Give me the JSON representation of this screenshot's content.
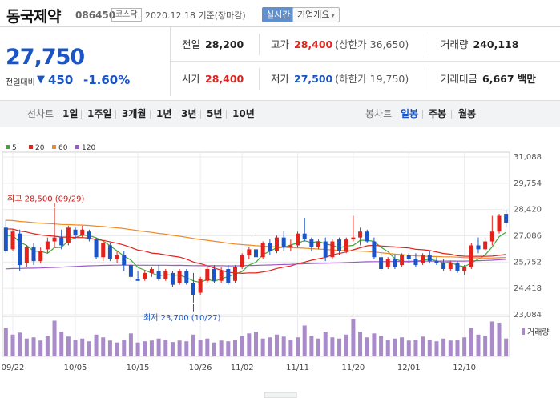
{
  "header": {
    "stock_name": "동국제약",
    "stock_code": "086450",
    "market": "코스닥",
    "date_text": "2020.12.18 기준(장마감)",
    "realtime_label": "실시간",
    "company_label": "기업개요",
    "company_chevron": "▾"
  },
  "price": {
    "current": "27,750",
    "change_label": "전일대비",
    "change_arrow": "▼",
    "change_value": "450",
    "change_rate": "-1.60%"
  },
  "stats": {
    "prev_close": {
      "label": "전일",
      "value": "28,200"
    },
    "high": {
      "label": "고가",
      "value": "28,400",
      "sub": "(상한가 36,650)"
    },
    "volume": {
      "label": "거래량",
      "value": "240,118"
    },
    "open": {
      "label": "시가",
      "value": "28,400"
    },
    "low": {
      "label": "저가",
      "value": "27,500",
      "sub": "(하한가 19,750)"
    },
    "amount": {
      "label": "거래대금",
      "value": "6,667 백만"
    }
  },
  "toolbar": {
    "line_chart": "선차트",
    "periods": [
      "1일",
      "1주일",
      "3개월",
      "1년",
      "3년",
      "5년",
      "10년"
    ],
    "candle_chart": "봉차트",
    "candle_periods": [
      "일봉",
      "주봉",
      "월봉"
    ]
  },
  "chart_data": {
    "type": "candlestick",
    "legend": [
      {
        "name": "5",
        "color": "#42a63c"
      },
      {
        "name": "20",
        "color": "#e3221b"
      },
      {
        "name": "60",
        "color": "#f08a24"
      },
      {
        "name": "120",
        "color": "#9b59c9"
      }
    ],
    "y_ticks": [
      "31,088",
      "29,754",
      "28,420",
      "27,086",
      "25,752",
      "24,418",
      "23,084"
    ],
    "y_min": 23084,
    "y_max": 31088,
    "x_labels": [
      "09/22",
      "10/05",
      "10/15",
      "10/26",
      "11/02",
      "11/11",
      "11/20",
      "12/01",
      "12/10"
    ],
    "x_label_index": [
      1,
      10,
      19,
      28,
      34,
      42,
      50,
      58,
      66
    ],
    "high_annotation": "최고 28,500 (09/29)",
    "low_annotation": "최저 23,700 (10/27)",
    "high_index": 7,
    "low_index": 27,
    "volume_legend": "거래량",
    "candles": [
      [
        27500,
        27900,
        26200,
        26300
      ],
      [
        26400,
        27400,
        26300,
        27300
      ],
      [
        27200,
        27400,
        25300,
        25600
      ],
      [
        25700,
        26600,
        25500,
        26500
      ],
      [
        26500,
        26700,
        25600,
        25800
      ],
      [
        25800,
        26500,
        25700,
        26300
      ],
      [
        26400,
        27000,
        26200,
        26800
      ],
      [
        26800,
        28500,
        26500,
        27000
      ],
      [
        27000,
        27400,
        26400,
        26600
      ],
      [
        26700,
        27600,
        26600,
        27500
      ],
      [
        27400,
        27500,
        26900,
        27100
      ],
      [
        27100,
        27600,
        27000,
        27400
      ],
      [
        27300,
        27400,
        26800,
        26900
      ],
      [
        26900,
        27000,
        25900,
        26000
      ],
      [
        26000,
        26800,
        25800,
        26700
      ],
      [
        26600,
        26700,
        25800,
        25900
      ],
      [
        25900,
        26300,
        25700,
        26100
      ],
      [
        26100,
        26300,
        25300,
        25600
      ],
      [
        25600,
        25800,
        24800,
        25000
      ],
      [
        24900,
        25300,
        24800,
        24800
      ],
      [
        24900,
        25300,
        24800,
        25200
      ],
      [
        25200,
        25500,
        25000,
        25400
      ],
      [
        25300,
        25600,
        24800,
        24900
      ],
      [
        24900,
        25400,
        24800,
        25300
      ],
      [
        25200,
        25300,
        24500,
        24600
      ],
      [
        24700,
        25400,
        24600,
        25300
      ],
      [
        25300,
        25400,
        24600,
        24700
      ],
      [
        24700,
        25200,
        23700,
        24100
      ],
      [
        24200,
        25000,
        24100,
        24900
      ],
      [
        24800,
        25500,
        24700,
        25400
      ],
      [
        25400,
        25600,
        24700,
        24800
      ],
      [
        24800,
        25500,
        24700,
        25300
      ],
      [
        25400,
        25600,
        24600,
        24700
      ],
      [
        24800,
        25600,
        24700,
        25500
      ],
      [
        25500,
        26200,
        25400,
        26100
      ],
      [
        26100,
        26500,
        25900,
        26400
      ],
      [
        26400,
        27100,
        25900,
        26000
      ],
      [
        26000,
        26800,
        25900,
        26700
      ],
      [
        26700,
        26900,
        26100,
        26300
      ],
      [
        26300,
        27100,
        26200,
        27000
      ],
      [
        27000,
        27300,
        26300,
        26500
      ],
      [
        26500,
        26900,
        26300,
        26600
      ],
      [
        26600,
        27300,
        26500,
        27200
      ],
      [
        27200,
        28000,
        26800,
        26900
      ],
      [
        26900,
        27000,
        26300,
        26500
      ],
      [
        26500,
        26900,
        26400,
        26800
      ],
      [
        26800,
        27000,
        25800,
        26000
      ],
      [
        26000,
        26900,
        25900,
        26800
      ],
      [
        26900,
        27000,
        26100,
        26300
      ],
      [
        26300,
        27000,
        26200,
        26900
      ],
      [
        26900,
        28100,
        26800,
        27000
      ],
      [
        27000,
        27500,
        26600,
        27300
      ],
      [
        27300,
        27400,
        26700,
        26800
      ],
      [
        26800,
        27000,
        25900,
        26000
      ],
      [
        26000,
        26300,
        25300,
        25400
      ],
      [
        25500,
        26000,
        25400,
        25900
      ],
      [
        25900,
        26100,
        25400,
        25500
      ],
      [
        25600,
        26200,
        25500,
        26100
      ],
      [
        26100,
        26200,
        25800,
        25900
      ],
      [
        25900,
        26200,
        25500,
        25600
      ],
      [
        25700,
        26200,
        25600,
        26100
      ],
      [
        26100,
        26300,
        25700,
        25800
      ],
      [
        25800,
        26000,
        25600,
        25700
      ],
      [
        25700,
        25900,
        25300,
        25400
      ],
      [
        25400,
        25800,
        25300,
        25700
      ],
      [
        25700,
        25800,
        25200,
        25300
      ],
      [
        25300,
        25600,
        25100,
        25500
      ],
      [
        25500,
        26700,
        25400,
        26600
      ],
      [
        26600,
        27000,
        26200,
        26400
      ],
      [
        26400,
        27000,
        26300,
        26800
      ],
      [
        26800,
        28100,
        26600,
        27300
      ],
      [
        27300,
        28200,
        27200,
        28100
      ],
      [
        28200,
        28400,
        27500,
        27750
      ]
    ],
    "volumes": [
      72,
      55,
      60,
      45,
      48,
      40,
      52,
      90,
      62,
      50,
      42,
      45,
      38,
      55,
      48,
      40,
      35,
      42,
      58,
      35,
      38,
      40,
      45,
      42,
      36,
      40,
      38,
      55,
      42,
      45,
      35,
      40,
      38,
      42,
      52,
      58,
      62,
      45,
      48,
      55,
      50,
      42,
      48,
      78,
      52,
      45,
      62,
      48,
      45,
      55,
      95,
      62,
      48,
      58,
      52,
      42,
      45,
      48,
      40,
      42,
      50,
      42,
      38,
      45,
      40,
      42,
      48,
      72,
      55,
      52,
      88,
      85,
      45
    ]
  }
}
